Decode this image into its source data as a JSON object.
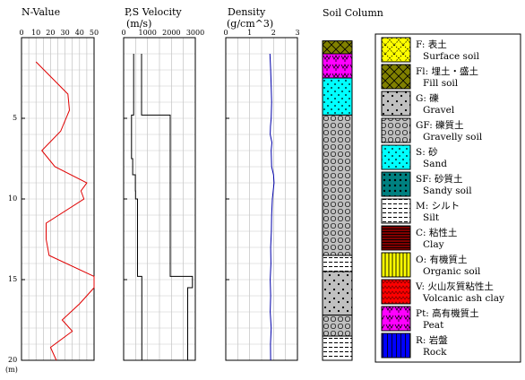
{
  "depth_axis": {
    "label": "(m)",
    "ticks": [
      "5",
      "10",
      "15",
      "20"
    ],
    "range": [
      0,
      20
    ]
  },
  "chart_data": [
    {
      "type": "line",
      "title": "N-Value",
      "xlabel": "",
      "ylabel": "",
      "xlim": [
        0,
        50
      ],
      "ylim": [
        20,
        0
      ],
      "x_ticks": [
        "0",
        "10",
        "20",
        "30",
        "40",
        "50"
      ],
      "grid": true,
      "series": [
        {
          "color": "#e00000",
          "points": [
            [
              10,
              1.5
            ],
            [
              32,
              3.5
            ],
            [
              33,
              4.5
            ],
            [
              27,
              5.8
            ],
            [
              14,
              7
            ],
            [
              23,
              8
            ],
            [
              45,
              9
            ],
            [
              41,
              9.5
            ],
            [
              43,
              10
            ],
            [
              17,
              11.5
            ],
            [
              17,
              12.5
            ],
            [
              19,
              13.5
            ],
            [
              50,
              14.8
            ],
            [
              50,
              15.5
            ],
            [
              40,
              16.5
            ],
            [
              28,
              17.5
            ],
            [
              35,
              18.2
            ],
            [
              20,
              19.2
            ],
            [
              24,
              20
            ]
          ]
        }
      ]
    },
    {
      "type": "line",
      "title": "P,S Velocity",
      "subtitle": "(m/s)",
      "xlabel": "",
      "ylabel": "",
      "xlim": [
        0,
        3000
      ],
      "ylim": [
        20,
        0
      ],
      "x_ticks": [
        "0",
        "1000",
        "2000",
        "3000"
      ],
      "grid": true,
      "series": [
        {
          "color": "#000000",
          "points": [
            [
              420,
              1
            ],
            [
              420,
              4.8
            ],
            [
              330,
              4.8
            ],
            [
              330,
              7.5
            ],
            [
              380,
              7.5
            ],
            [
              380,
              8.5
            ],
            [
              490,
              8.5
            ],
            [
              490,
              9.5
            ],
            [
              500,
              9.5
            ],
            [
              500,
              10
            ],
            [
              580,
              10
            ],
            [
              580,
              14.8
            ],
            [
              760,
              14.8
            ],
            [
              760,
              20
            ]
          ]
        },
        {
          "color": "#000000",
          "points": [
            [
              750,
              1
            ],
            [
              750,
              4.8
            ],
            [
              1950,
              4.8
            ],
            [
              1950,
              14.8
            ],
            [
              2880,
              14.8
            ],
            [
              2880,
              15.5
            ],
            [
              2680,
              15.5
            ],
            [
              2680,
              20
            ]
          ]
        }
      ]
    },
    {
      "type": "line",
      "title": "Density",
      "subtitle": "(g/cm^3)",
      "xlabel": "",
      "ylabel": "",
      "xlim": [
        0,
        3
      ],
      "ylim": [
        20,
        0
      ],
      "x_ticks": [
        "0",
        "1",
        "2",
        "3"
      ],
      "grid": true,
      "series": [
        {
          "color": "#0000aa",
          "points": [
            [
              1.85,
              1
            ],
            [
              1.88,
              2
            ],
            [
              1.9,
              3
            ],
            [
              1.92,
              4
            ],
            [
              1.9,
              5
            ],
            [
              1.87,
              5.5
            ],
            [
              1.86,
              6
            ],
            [
              1.93,
              6.5
            ],
            [
              1.9,
              7
            ],
            [
              1.92,
              8
            ],
            [
              2.0,
              8.5
            ],
            [
              2.02,
              9
            ],
            [
              1.95,
              10
            ],
            [
              1.92,
              11
            ],
            [
              1.91,
              12
            ],
            [
              1.88,
              13
            ],
            [
              1.89,
              14
            ],
            [
              1.86,
              15
            ],
            [
              1.88,
              16
            ],
            [
              1.86,
              17
            ],
            [
              1.9,
              18
            ],
            [
              1.87,
              19
            ],
            [
              1.88,
              20
            ]
          ]
        }
      ]
    }
  ],
  "soil_column": {
    "title": "Soil Column",
    "layers": [
      {
        "code": "Fl",
        "top": 0.2,
        "bottom": 1.0
      },
      {
        "code": "Pt",
        "top": 1.0,
        "bottom": 2.5
      },
      {
        "code": "S",
        "top": 2.5,
        "bottom": 4.8
      },
      {
        "code": "GF",
        "top": 4.8,
        "bottom": 13.5
      },
      {
        "code": "M",
        "top": 13.5,
        "bottom": 14.5
      },
      {
        "code": "G",
        "top": 14.5,
        "bottom": 17.2
      },
      {
        "code": "GF",
        "top": 17.2,
        "bottom": 18.5
      },
      {
        "code": "M",
        "top": 18.5,
        "bottom": 20.0
      }
    ]
  },
  "legend": [
    {
      "code": "F",
      "jp": "F: 表土",
      "en": "Surface soil",
      "pattern": "surface",
      "color": "#ffff00"
    },
    {
      "code": "Fl",
      "jp": "Fl: 埋土・盛土",
      "en": "Fill soil",
      "pattern": "fill",
      "color": "#808000"
    },
    {
      "code": "G",
      "jp": "G: 礫",
      "en": "Gravel",
      "pattern": "gravel",
      "color": "#c0c0c0"
    },
    {
      "code": "GF",
      "jp": "GF: 礫質土",
      "en": "Gravelly soil",
      "pattern": "gravelly",
      "color": "#c0c0c0"
    },
    {
      "code": "S",
      "jp": "S: 砂",
      "en": "Sand",
      "pattern": "sand",
      "color": "#00ffff"
    },
    {
      "code": "SF",
      "jp": "SF: 砂質土",
      "en": "Sandy soil",
      "pattern": "sandy",
      "color": "#008080"
    },
    {
      "code": "M",
      "jp": "M: シルト",
      "en": "Silt",
      "pattern": "silt",
      "color": "#ffffff"
    },
    {
      "code": "C",
      "jp": "C: 粘性土",
      "en": "Clay",
      "pattern": "clay",
      "color": "#800000"
    },
    {
      "code": "O",
      "jp": "O: 有機質土",
      "en": "Organic soil",
      "pattern": "organic",
      "color": "#ffff00"
    },
    {
      "code": "V",
      "jp": "V: 火山灰質粘性土",
      "en": "Volcanic ash clay",
      "pattern": "volcanic",
      "color": "#ff0000"
    },
    {
      "code": "Pt",
      "jp": "Pt: 高有機質土",
      "en": "Peat",
      "pattern": "peat",
      "color": "#ff00ff"
    },
    {
      "code": "R",
      "jp": "R: 岩盤",
      "en": "Rock",
      "pattern": "rock",
      "color": "#0000ff"
    }
  ]
}
